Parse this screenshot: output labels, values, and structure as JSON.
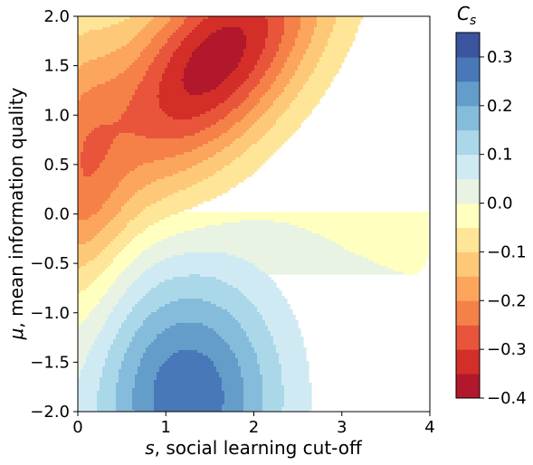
{
  "chart_data": {
    "type": "contourf",
    "xlabel": {
      "symbol": "s",
      "text": ", social learning cut-off"
    },
    "ylabel": {
      "symbol": "μ",
      "text": ", mean information quality"
    },
    "xlim": [
      0,
      4
    ],
    "ylim": [
      -2,
      2
    ],
    "x_ticks": [
      "0",
      "1",
      "2",
      "3",
      "4"
    ],
    "y_ticks": [
      "−2.0",
      "−1.5",
      "−1.0",
      "−0.5",
      "0.0",
      "0.5",
      "1.0",
      "1.5",
      "2.0"
    ],
    "colorbar": {
      "title": {
        "symbol": "C",
        "subscript": "s"
      },
      "range": [
        -0.4,
        0.35
      ],
      "ticks": [
        "−0.4",
        "−0.3",
        "−0.2",
        "−0.1",
        "0.0",
        "0.1",
        "0.2",
        "0.3"
      ],
      "levels": [
        {
          "from": -0.4,
          "to": -0.35,
          "color": "#b2182b"
        },
        {
          "from": -0.35,
          "to": -0.3,
          "color": "#d42e28"
        },
        {
          "from": -0.3,
          "to": -0.25,
          "color": "#e8553b"
        },
        {
          "from": -0.25,
          "to": -0.2,
          "color": "#f58149"
        },
        {
          "from": -0.2,
          "to": -0.15,
          "color": "#fca55d"
        },
        {
          "from": -0.15,
          "to": -0.1,
          "color": "#fdc979"
        },
        {
          "from": -0.1,
          "to": -0.05,
          "color": "#fee597"
        },
        {
          "from": -0.05,
          "to": 0.0,
          "color": "#ffffbf"
        },
        {
          "from": 0.0,
          "to": 0.05,
          "color": "#e8f3e3"
        },
        {
          "from": 0.05,
          "to": 0.1,
          "color": "#d0eaf3"
        },
        {
          "from": 0.1,
          "to": 0.15,
          "color": "#aad8e9"
        },
        {
          "from": 0.15,
          "to": 0.2,
          "color": "#86bcdb"
        },
        {
          "from": 0.2,
          "to": 0.25,
          "color": "#649dca"
        },
        {
          "from": 0.25,
          "to": 0.3,
          "color": "#4878b8"
        },
        {
          "from": 0.3,
          "to": 0.35,
          "color": "#3a54a0"
        }
      ]
    }
  }
}
